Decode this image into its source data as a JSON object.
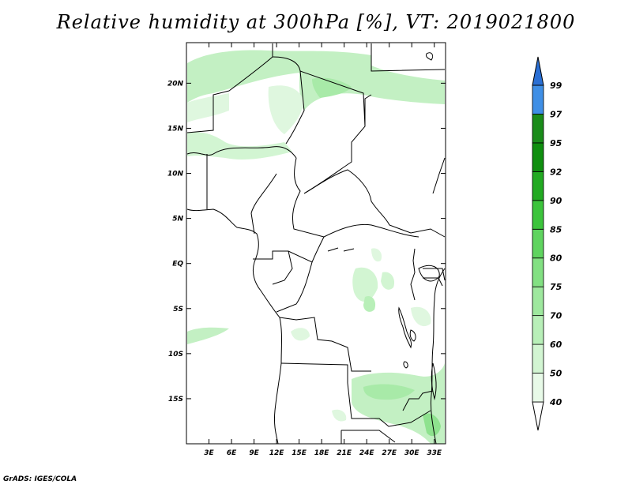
{
  "title": "Relative humidity at 300hPa [%], VT: 2019021800",
  "credit": "GrADS: IGES/COLA",
  "map_data": {
    "variable": "Relative humidity",
    "level": "300hPa",
    "unit": "%",
    "valid_time": "2019021800",
    "lon_range": [
      0,
      34.5
    ],
    "lat_range": [
      -20,
      24.5
    ],
    "x_ticks": [
      {
        "value": 3,
        "label": "3E"
      },
      {
        "value": 6,
        "label": "6E"
      },
      {
        "value": 9,
        "label": "9E"
      },
      {
        "value": 12,
        "label": "12E"
      },
      {
        "value": 15,
        "label": "15E"
      },
      {
        "value": 18,
        "label": "18E"
      },
      {
        "value": 21,
        "label": "21E"
      },
      {
        "value": 24,
        "label": "24E"
      },
      {
        "value": 27,
        "label": "27E"
      },
      {
        "value": 30,
        "label": "30E"
      },
      {
        "value": 33,
        "label": "33E"
      }
    ],
    "y_ticks": [
      {
        "value": 20,
        "label": "20N"
      },
      {
        "value": 15,
        "label": "15N"
      },
      {
        "value": 10,
        "label": "10N"
      },
      {
        "value": 5,
        "label": "5N"
      },
      {
        "value": 0,
        "label": "EQ"
      },
      {
        "value": -5,
        "label": "5S"
      },
      {
        "value": -10,
        "label": "10S"
      },
      {
        "value": -15,
        "label": "15S"
      }
    ]
  },
  "colorbar": {
    "levels": [
      {
        "label": "40",
        "color": "#e8fae8"
      },
      {
        "label": "50",
        "color": "#d2f5d2"
      },
      {
        "label": "60",
        "color": "#b8efb8"
      },
      {
        "label": "70",
        "color": "#9ee89e"
      },
      {
        "label": "75",
        "color": "#82e082"
      },
      {
        "label": "80",
        "color": "#5fd45f"
      },
      {
        "label": "85",
        "color": "#3cc43c"
      },
      {
        "label": "90",
        "color": "#22aa22"
      },
      {
        "label": "92",
        "color": "#0f8f0f"
      },
      {
        "label": "95",
        "color": "#1a8c1a"
      },
      {
        "label": "97",
        "color": "#3f8fe6"
      },
      {
        "label": "99",
        "color": "#2a6fd4"
      }
    ],
    "over_color": "#2a6fd4",
    "under_color": "#ffffff"
  }
}
